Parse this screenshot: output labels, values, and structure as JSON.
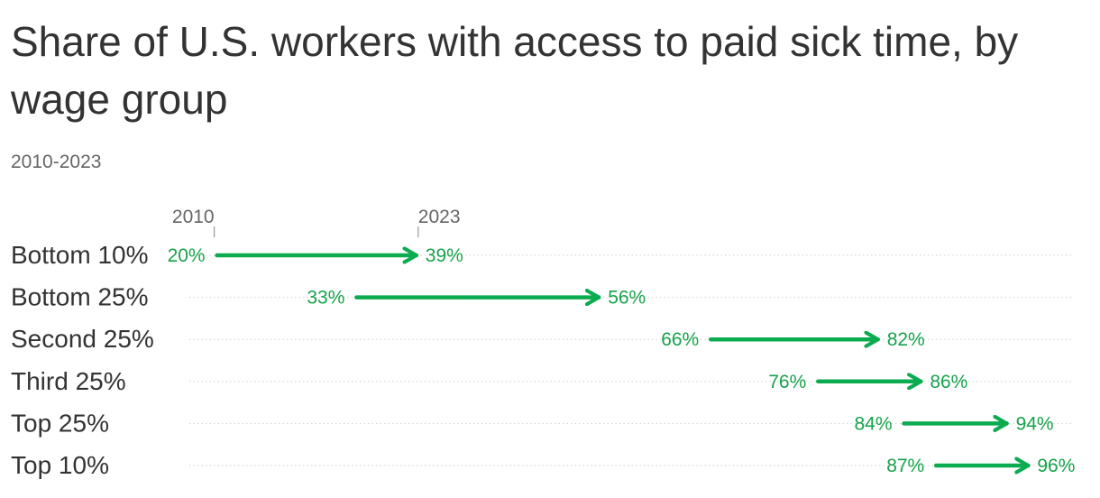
{
  "header": {
    "title": "Share of U.S. workers with access to paid sick time, by wage group",
    "subtitle": "2010-2023"
  },
  "colors": {
    "arrow": "#0bab4f",
    "value_text": "#16a34a",
    "gridline": "#cfcfcf",
    "key_tick": "#999999"
  },
  "chart_data": {
    "type": "arrow",
    "title": "Share of U.S. workers with access to paid sick time, by wage group",
    "subtitle": "2010-2023",
    "start_label": "2010",
    "end_label": "2023",
    "xlim": [
      16,
      100
    ],
    "unit": "%",
    "grid": "dotted row lines",
    "rows": [
      {
        "label": "Bottom 10%",
        "start": 20,
        "end": 39,
        "start_text": "20%",
        "end_text": "39%"
      },
      {
        "label": "Bottom 25%",
        "start": 33,
        "end": 56,
        "start_text": "33%",
        "end_text": "56%"
      },
      {
        "label": "Second 25%",
        "start": 66,
        "end": 82,
        "start_text": "66%",
        "end_text": "82%"
      },
      {
        "label": "Third 25%",
        "start": 76,
        "end": 86,
        "start_text": "76%",
        "end_text": "86%"
      },
      {
        "label": "Top 25%",
        "start": 84,
        "end": 94,
        "start_text": "84%",
        "end_text": "94%"
      },
      {
        "label": "Top 10%",
        "start": 87,
        "end": 96,
        "start_text": "87%",
        "end_text": "96%"
      }
    ]
  }
}
